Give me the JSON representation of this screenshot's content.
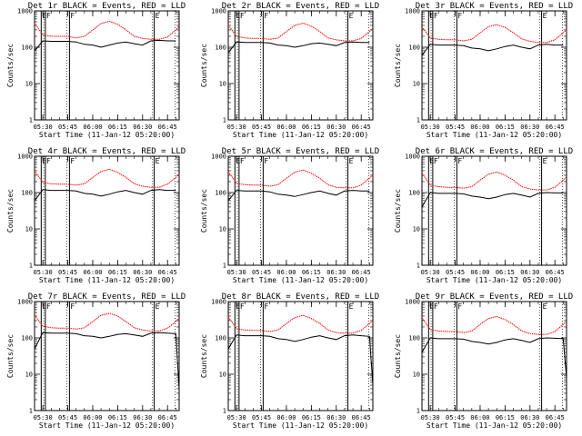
{
  "chart_data": {
    "type": "line",
    "scale": {
      "y": "log",
      "ylim": [
        1,
        1000
      ],
      "x_unit": "minutes"
    },
    "x_range_minutes": [
      325,
      412
    ],
    "xlabel": "Start Time (11-Jan-12 05:20:00)",
    "ylabel": "Counts/sec",
    "y_ticks": [
      "1",
      "10",
      "100",
      "1000"
    ],
    "x_ticks": [
      {
        "t": 330,
        "label": "05:30"
      },
      {
        "t": 345,
        "label": "05:45"
      },
      {
        "t": 360,
        "label": "06:00"
      },
      {
        "t": 375,
        "label": "06:15"
      },
      {
        "t": 390,
        "label": "06:30"
      },
      {
        "t": 405,
        "label": "06:45"
      }
    ],
    "markers": [
      {
        "t": 329,
        "label": "E"
      },
      {
        "t": 331.5,
        "label": "F"
      },
      {
        "t": 346,
        "label": "F"
      },
      {
        "t": 397,
        "label": "E"
      }
    ],
    "dotted_lines_minutes": [
      330.5,
      344.5,
      396,
      409.5
    ],
    "series_times_minutes": [
      325,
      330,
      335,
      340,
      345,
      350,
      355,
      360,
      365,
      370,
      375,
      380,
      385,
      390,
      395,
      400,
      405,
      410,
      412
    ],
    "panels": [
      {
        "title": "Det 1r BLACK = Events, RED = LLD",
        "series": [
          {
            "name": "Events",
            "color": "#000000",
            "values": [
              80,
              150,
              145,
              145,
              145,
              140,
              120,
              115,
              100,
              115,
              130,
              140,
              125,
              115,
              150,
              155,
              150,
              150,
              null
            ]
          },
          {
            "name": "LLD",
            "color": "#ff0000",
            "values": [
              460,
              220,
              200,
              200,
              200,
              180,
              200,
              300,
              450,
              520,
              430,
              300,
              200,
              175,
              165,
              165,
              190,
              300,
              380
            ]
          }
        ]
      },
      {
        "title": "Det 2r BLACK = Events, RED = LLD",
        "series": [
          {
            "name": "Events",
            "color": "#000000",
            "values": [
              70,
              140,
              135,
              135,
              135,
              130,
              115,
              110,
              100,
              110,
              125,
              130,
              120,
              110,
              135,
              140,
              135,
              135,
              null
            ]
          },
          {
            "name": "LLD",
            "color": "#ff0000",
            "values": [
              410,
              200,
              180,
              175,
              175,
              165,
              180,
              270,
              400,
              460,
              380,
              270,
              180,
              160,
              150,
              150,
              175,
              270,
              340
            ]
          }
        ]
      },
      {
        "title": "Det 3r BLACK = Events, RED = LLD",
        "series": [
          {
            "name": "Events",
            "color": "#000000",
            "values": [
              60,
              120,
              115,
              115,
              115,
              110,
              95,
              90,
              80,
              90,
              105,
              115,
              100,
              90,
              115,
              120,
              115,
              115,
              null
            ]
          },
          {
            "name": "LLD",
            "color": "#ff0000",
            "values": [
              370,
              180,
              165,
              160,
              160,
              150,
              165,
              250,
              370,
              420,
              350,
              250,
              170,
              145,
              135,
              135,
              160,
              250,
              300
            ]
          }
        ]
      },
      {
        "title": "Det 4r BLACK = Events, RED = LLD",
        "series": [
          {
            "name": "Events",
            "color": "#000000",
            "values": [
              60,
              120,
              115,
              115,
              115,
              110,
              95,
              90,
              80,
              90,
              105,
              115,
              100,
              90,
              115,
              120,
              115,
              115,
              null
            ]
          },
          {
            "name": "LLD",
            "color": "#ff0000",
            "values": [
              400,
              190,
              175,
              170,
              170,
              160,
              175,
              260,
              380,
              440,
              360,
              260,
              175,
              150,
              140,
              140,
              170,
              260,
              320
            ]
          }
        ]
      },
      {
        "title": "Det 5r BLACK = Events, RED = LLD",
        "series": [
          {
            "name": "Events",
            "color": "#000000",
            "values": [
              60,
              115,
              110,
              110,
              110,
              105,
              90,
              85,
              78,
              88,
              100,
              110,
              95,
              85,
              110,
              115,
              110,
              110,
              null
            ]
          },
          {
            "name": "LLD",
            "color": "#ff0000",
            "values": [
              380,
              180,
              165,
              160,
              160,
              150,
              165,
              250,
              360,
              420,
              340,
              250,
              165,
              140,
              135,
              135,
              160,
              250,
              300
            ]
          }
        ]
      },
      {
        "title": "Det 6r BLACK = Events, RED = LLD",
        "series": [
          {
            "name": "Events",
            "color": "#000000",
            "values": [
              40,
              100,
              95,
              95,
              95,
              92,
              80,
              75,
              68,
              75,
              88,
              95,
              85,
              75,
              95,
              100,
              98,
              98,
              null
            ]
          },
          {
            "name": "LLD",
            "color": "#ff0000",
            "values": [
              340,
              160,
              145,
              140,
              140,
              132,
              145,
              220,
              320,
              370,
              300,
              220,
              145,
              125,
              118,
              118,
              140,
              220,
              270
            ]
          }
        ]
      },
      {
        "title": "Det 7r BLACK = Events, RED = LLD",
        "series": [
          {
            "name": "Events",
            "color": "#000000",
            "values": [
              50,
              140,
              135,
              135,
              135,
              130,
              115,
              110,
              100,
              110,
              125,
              130,
              120,
              110,
              135,
              140,
              135,
              130,
              4
            ]
          },
          {
            "name": "LLD",
            "color": "#ff0000",
            "values": [
              430,
              210,
              190,
              185,
              185,
              175,
              190,
              280,
              420,
              480,
              400,
              280,
              190,
              165,
              155,
              155,
              185,
              280,
              360
            ]
          }
        ]
      },
      {
        "title": "Det 8r BLACK = Events, RED = LLD",
        "series": [
          {
            "name": "Events",
            "color": "#000000",
            "values": [
              50,
              120,
              115,
              115,
              115,
              110,
              95,
              90,
              80,
              90,
              105,
              115,
              100,
              90,
              115,
              120,
              115,
              110,
              5
            ]
          },
          {
            "name": "LLD",
            "color": "#ff0000",
            "values": [
              380,
              180,
              165,
              160,
              160,
              150,
              165,
              250,
              360,
              420,
              340,
              250,
              165,
              140,
              135,
              135,
              160,
              250,
              300
            ]
          }
        ]
      },
      {
        "title": "Det 9r BLACK = Events, RED = LLD",
        "series": [
          {
            "name": "Events",
            "color": "#000000",
            "values": [
              40,
              100,
              95,
              95,
              95,
              92,
              80,
              75,
              68,
              75,
              88,
              95,
              85,
              75,
              95,
              100,
              98,
              95,
              8
            ]
          },
          {
            "name": "LLD",
            "color": "#ff0000",
            "values": [
              360,
              170,
              155,
              150,
              150,
              140,
              155,
              235,
              340,
              390,
              320,
              235,
              155,
              132,
              125,
              125,
              150,
              235,
              285
            ]
          }
        ]
      }
    ]
  }
}
